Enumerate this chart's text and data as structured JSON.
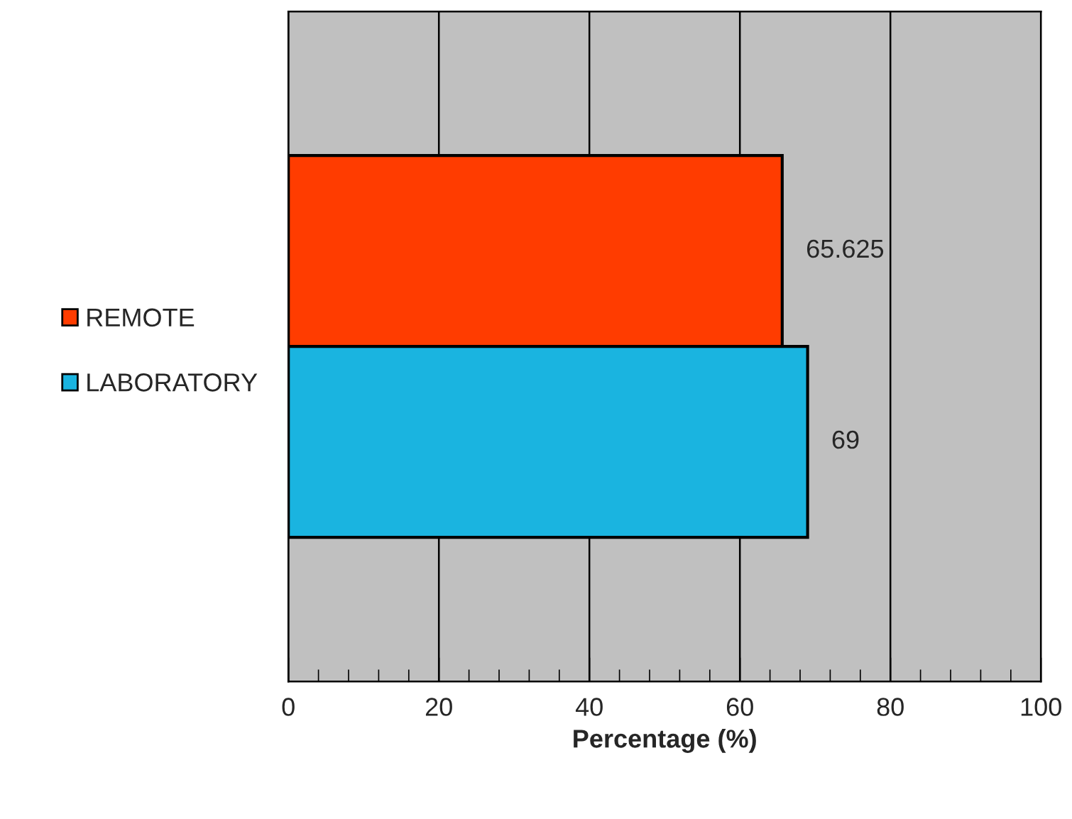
{
  "chart_data": {
    "type": "bar",
    "orientation": "horizontal",
    "xlabel": "Percentage (%)",
    "categories": [
      null
    ],
    "series": [
      {
        "name": "REMOTE",
        "color": "#ff3c00",
        "values": [
          65.625
        ]
      },
      {
        "name": "LABORATORY",
        "color": "#1ab4e0",
        "values": [
          69
        ]
      }
    ],
    "xlim": [
      0,
      100
    ],
    "xticks": [
      0,
      20,
      40,
      60,
      80,
      100
    ],
    "grid": "x",
    "legend": "left",
    "data_labels": true
  }
}
